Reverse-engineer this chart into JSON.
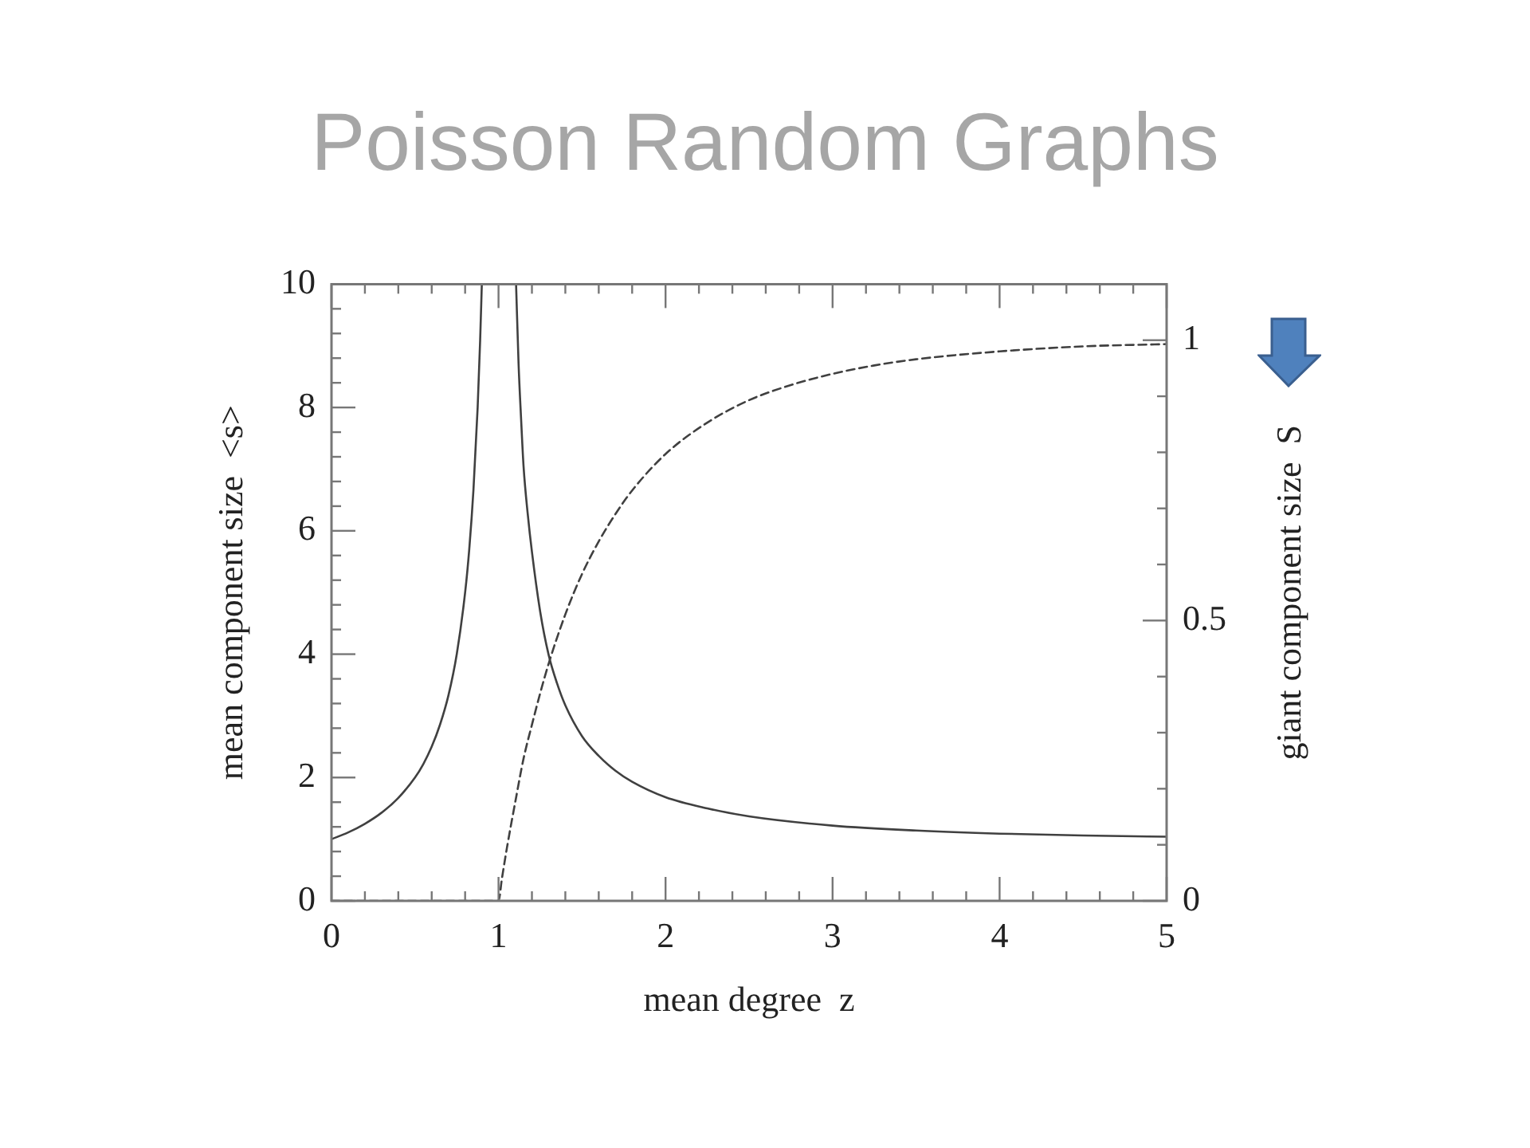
{
  "chart_data": {
    "type": "line",
    "title": "Poisson Random Graphs",
    "xlabel": "mean degree  z",
    "ylabel": "mean component size  <s>",
    "y2label": "giant component size  S",
    "series": [
      {
        "x": [
          0,
          0.1,
          0.2,
          0.3,
          0.4,
          0.5,
          0.55,
          0.6,
          0.65,
          0.7,
          0.75,
          0.8,
          0.825,
          0.85,
          0.875,
          0.89,
          0.9,
          1,
          1.105,
          1.12,
          1.135,
          1.15,
          1.175,
          1.2,
          1.25,
          1.3,
          1.35,
          1.4,
          1.5,
          1.6,
          1.7,
          1.8,
          2,
          2.25,
          2.5,
          3,
          3.5,
          4,
          4.5,
          5
        ],
        "values": [
          1,
          1.11,
          1.25,
          1.43,
          1.67,
          2,
          2.22,
          2.5,
          2.86,
          3.33,
          4,
          5,
          5.71,
          6.67,
          8,
          9.09,
          10,
          null,
          10,
          8.71,
          7.82,
          7.04,
          6.27,
          5.66,
          4.68,
          3.99,
          3.53,
          3.17,
          2.67,
          2.35,
          2.11,
          1.93,
          1.68,
          1.5,
          1.37,
          1.22,
          1.14,
          1.09,
          1.06,
          1.04
        ],
        "color": "#404040",
        "line_style": "solid"
      },
      {
        "x": [
          0,
          1,
          1.02,
          1.05,
          1.1,
          1.15,
          1.2,
          1.25,
          1.3,
          1.4,
          1.5,
          1.6,
          1.7,
          1.8,
          2,
          2.25,
          2.5,
          2.75,
          3,
          3.25,
          3.5,
          4,
          4.5,
          5
        ],
        "values": [
          0,
          0,
          0.039,
          0.094,
          0.176,
          0.254,
          0.314,
          0.371,
          0.423,
          0.511,
          0.583,
          0.641,
          0.69,
          0.732,
          0.797,
          0.853,
          0.893,
          0.92,
          0.94,
          0.955,
          0.966,
          0.98,
          0.989,
          0.993
        ],
        "color": "#404040",
        "line_style": "dashed",
        "axis": "y2"
      }
    ],
    "xlim": [
      0,
      5
    ],
    "xticks": [
      0,
      {
        "value": 0.2,
        "label": null
      },
      {
        "value": 0.4,
        "label": null
      },
      {
        "value": 0.6,
        "label": null
      },
      {
        "value": 0.8,
        "label": null
      },
      1,
      {
        "value": 1.2,
        "label": null
      },
      {
        "value": 1.4,
        "label": null
      },
      {
        "value": 1.6,
        "label": null
      },
      {
        "value": 1.8,
        "label": null
      },
      2,
      {
        "value": 2.2,
        "label": null
      },
      {
        "value": 2.4,
        "label": null
      },
      {
        "value": 2.6,
        "label": null
      },
      {
        "value": 2.8,
        "label": null
      },
      3,
      {
        "value": 3.2,
        "label": null
      },
      {
        "value": 3.4,
        "label": null
      },
      {
        "value": 3.6,
        "label": null
      },
      {
        "value": 3.8,
        "label": null
      },
      4,
      {
        "value": 4.2,
        "label": null
      },
      {
        "value": 4.4,
        "label": null
      },
      {
        "value": 4.6,
        "label": null
      },
      {
        "value": 4.8,
        "label": null
      },
      5
    ],
    "ylim": [
      0,
      10
    ],
    "yticks": [
      0,
      {
        "value": 0.4,
        "label": null
      },
      {
        "value": 0.8,
        "label": null
      },
      {
        "value": 1.2,
        "label": null
      },
      {
        "value": 1.6,
        "label": null
      },
      2,
      {
        "value": 2.4,
        "label": null
      },
      {
        "value": 2.8,
        "label": null
      },
      {
        "value": 3.2,
        "label": null
      },
      {
        "value": 3.6,
        "label": null
      },
      4,
      {
        "value": 4.4,
        "label": null
      },
      {
        "value": 4.8,
        "label": null
      },
      {
        "value": 5.2,
        "label": null
      },
      {
        "value": 5.6,
        "label": null
      },
      6,
      {
        "value": 6.4,
        "label": null
      },
      {
        "value": 6.8,
        "label": null
      },
      {
        "value": 7.2,
        "label": null
      },
      {
        "value": 7.6,
        "label": null
      },
      8,
      {
        "value": 8.4,
        "label": null
      },
      {
        "value": 8.8,
        "label": null
      },
      {
        "value": 9.2,
        "label": null
      },
      {
        "value": 9.6,
        "label": null
      },
      10
    ],
    "y2lim": [
      0,
      1.1
    ],
    "y2ticks": [
      0,
      {
        "value": 0.1,
        "label": null
      },
      {
        "value": 0.2,
        "label": null
      },
      {
        "value": 0.3,
        "label": null
      },
      {
        "value": 0.4,
        "label": null
      },
      0.5,
      {
        "value": 0.6,
        "label": null
      },
      {
        "value": 0.7,
        "label": null
      },
      {
        "value": 0.8,
        "label": null
      },
      {
        "value": 0.9,
        "label": null
      },
      1
    ],
    "grid": false,
    "legend": false,
    "marker": "none"
  }
}
